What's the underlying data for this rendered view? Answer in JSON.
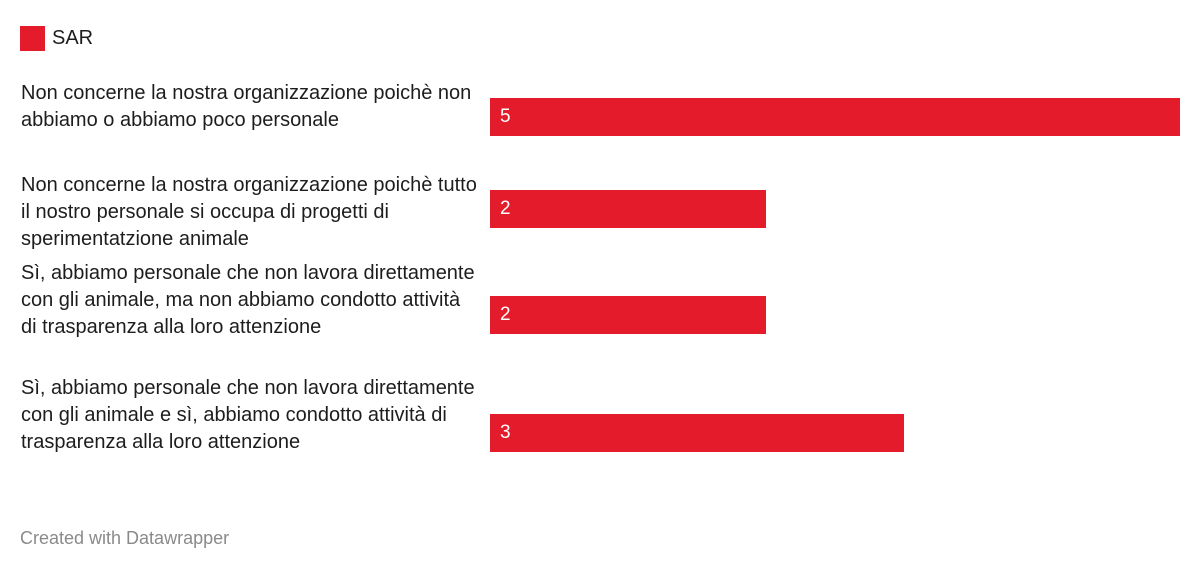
{
  "colors": {
    "bar": "#e31b2b",
    "text": "#1d1d1d",
    "value_text": "#ffffff",
    "footer_text": "#8a8a8a"
  },
  "legend": {
    "label": "SAR"
  },
  "footer": {
    "credit": "Created with Datawrapper"
  },
  "chart_data": {
    "type": "bar",
    "orientation": "horizontal",
    "title": "",
    "xlabel": "",
    "ylabel": "",
    "xlim": [
      0,
      5
    ],
    "grid": false,
    "legend_position": "top-left",
    "categories": [
      "Non concerne la nostra organizzazione poichè non abbiamo o abbiamo poco personale",
      "Non concerne la nostra organizzazione poichè tutto il nostro personale si occupa di progetti di sperimentatzione animale",
      "Sì, abbiamo personale che non lavora direttamente con gli animale, ma non abbiamo condotto attività di trasparenza alla loro attenzione",
      "Sì, abbiamo personale che non lavora direttamente con gli animale e sì, abbiamo condotto attività di trasparenza alla loro attenzione"
    ],
    "series": [
      {
        "name": "SAR",
        "values": [
          5,
          2,
          2,
          3
        ]
      }
    ]
  }
}
